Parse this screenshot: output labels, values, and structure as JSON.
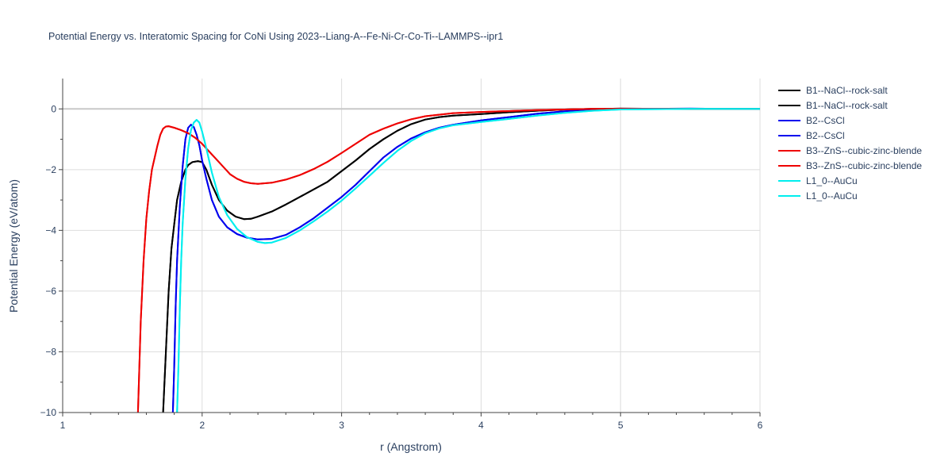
{
  "chart_data": {
    "type": "line",
    "title": "Potential Energy vs. Interatomic Spacing for CoNi Using 2023--Liang-A--Fe-Ni-Cr-Co-Ti--LAMMPS--ipr1",
    "xlabel": "r (Angstrom)",
    "ylabel": "Potential Energy (eV/atom)",
    "xlim": [
      1,
      6
    ],
    "ylim": [
      -10,
      1
    ],
    "x_ticks": [
      1,
      2,
      3,
      4,
      5,
      6
    ],
    "y_ticks": [
      -10,
      -8,
      -6,
      -4,
      -2,
      0
    ],
    "x_tick_labels": [
      "1",
      "2",
      "3",
      "4",
      "5",
      "6"
    ],
    "y_tick_labels": [
      "−10",
      "−8",
      "−6",
      "−4",
      "−2",
      "0"
    ],
    "grid": true,
    "legend_position": "right",
    "series": [
      {
        "name": "B1--NaCl--rock-salt",
        "color": "#000000",
        "x": [
          1.72,
          1.74,
          1.76,
          1.78,
          1.8,
          1.82,
          1.85,
          1.88,
          1.9,
          1.93,
          1.97,
          2.0,
          2.03,
          2.07,
          2.12,
          2.18,
          2.24,
          2.3,
          2.35,
          2.4,
          2.5,
          2.6,
          2.7,
          2.8,
          2.9,
          3.0,
          3.1,
          3.2,
          3.3,
          3.4,
          3.5,
          3.6,
          3.7,
          3.8,
          4.0,
          4.2,
          4.4,
          4.6,
          4.8,
          5.0,
          5.5,
          6.0
        ],
        "y": [
          -10.0,
          -8.0,
          -6.0,
          -4.6,
          -3.8,
          -3.0,
          -2.4,
          -2.0,
          -1.85,
          -1.75,
          -1.72,
          -1.75,
          -2.0,
          -2.5,
          -3.0,
          -3.35,
          -3.55,
          -3.63,
          -3.62,
          -3.55,
          -3.38,
          -3.15,
          -2.9,
          -2.65,
          -2.4,
          -2.05,
          -1.7,
          -1.32,
          -1.0,
          -0.72,
          -0.5,
          -0.35,
          -0.27,
          -0.22,
          -0.17,
          -0.11,
          -0.06,
          -0.02,
          0.0,
          0.01,
          0.0,
          0.0
        ]
      },
      {
        "name": "B1--NaCl--rock-salt",
        "color": "#000000",
        "x": [
          1.72,
          1.74,
          1.76,
          1.78,
          1.8,
          1.82,
          1.85,
          1.88,
          1.9,
          1.93,
          1.97,
          2.0,
          2.03,
          2.07,
          2.12,
          2.18,
          2.24,
          2.3,
          2.35,
          2.4,
          2.5,
          2.6,
          2.7,
          2.8,
          2.9,
          3.0,
          3.1,
          3.2,
          3.3,
          3.4,
          3.5,
          3.6,
          3.7,
          3.8,
          4.0,
          4.2,
          4.4,
          4.6,
          4.8,
          5.0,
          5.5,
          6.0
        ],
        "y": [
          -10.0,
          -8.0,
          -6.0,
          -4.6,
          -3.8,
          -3.0,
          -2.4,
          -2.0,
          -1.85,
          -1.75,
          -1.72,
          -1.75,
          -2.0,
          -2.5,
          -3.0,
          -3.35,
          -3.55,
          -3.63,
          -3.62,
          -3.55,
          -3.38,
          -3.15,
          -2.9,
          -2.65,
          -2.4,
          -2.05,
          -1.7,
          -1.32,
          -1.0,
          -0.72,
          -0.5,
          -0.35,
          -0.27,
          -0.22,
          -0.17,
          -0.11,
          -0.06,
          -0.02,
          0.0,
          0.01,
          0.0,
          0.0
        ]
      },
      {
        "name": "B2--CsCl",
        "color": "#0000ee",
        "x": [
          1.79,
          1.8,
          1.81,
          1.82,
          1.84,
          1.86,
          1.88,
          1.9,
          1.92,
          1.94,
          1.96,
          1.98,
          2.0,
          2.03,
          2.07,
          2.12,
          2.18,
          2.25,
          2.32,
          2.4,
          2.5,
          2.6,
          2.7,
          2.8,
          2.9,
          3.0,
          3.1,
          3.2,
          3.3,
          3.4,
          3.5,
          3.6,
          3.7,
          3.8,
          4.0,
          4.2,
          4.4,
          4.6,
          4.8,
          5.0,
          5.5,
          6.0
        ],
        "y": [
          -10.0,
          -8.5,
          -6.5,
          -5.0,
          -3.2,
          -1.9,
          -1.0,
          -0.62,
          -0.52,
          -0.6,
          -0.85,
          -1.2,
          -1.7,
          -2.3,
          -3.0,
          -3.55,
          -3.9,
          -4.12,
          -4.24,
          -4.3,
          -4.28,
          -4.15,
          -3.9,
          -3.6,
          -3.25,
          -2.9,
          -2.5,
          -2.05,
          -1.6,
          -1.25,
          -0.97,
          -0.77,
          -0.62,
          -0.52,
          -0.38,
          -0.27,
          -0.16,
          -0.08,
          -0.03,
          0.0,
          0.01,
          0.0
        ]
      },
      {
        "name": "B2--CsCl",
        "color": "#0000ee",
        "x": [
          1.79,
          1.8,
          1.81,
          1.82,
          1.84,
          1.86,
          1.88,
          1.9,
          1.92,
          1.94,
          1.96,
          1.98,
          2.0,
          2.03,
          2.07,
          2.12,
          2.18,
          2.25,
          2.32,
          2.4,
          2.5,
          2.6,
          2.7,
          2.8,
          2.9,
          3.0,
          3.1,
          3.2,
          3.3,
          3.4,
          3.5,
          3.6,
          3.7,
          3.8,
          4.0,
          4.2,
          4.4,
          4.6,
          4.8,
          5.0,
          5.5,
          6.0
        ],
        "y": [
          -10.0,
          -8.5,
          -6.5,
          -5.0,
          -3.2,
          -1.9,
          -1.0,
          -0.62,
          -0.52,
          -0.6,
          -0.85,
          -1.2,
          -1.7,
          -2.3,
          -3.0,
          -3.55,
          -3.9,
          -4.12,
          -4.24,
          -4.3,
          -4.28,
          -4.15,
          -3.9,
          -3.6,
          -3.25,
          -2.9,
          -2.5,
          -2.05,
          -1.6,
          -1.25,
          -0.97,
          -0.77,
          -0.62,
          -0.52,
          -0.38,
          -0.27,
          -0.16,
          -0.08,
          -0.03,
          0.0,
          0.01,
          0.0
        ]
      },
      {
        "name": "B3--ZnS--cubic-zinc-blende",
        "color": "#ee0000",
        "x": [
          1.54,
          1.56,
          1.58,
          1.6,
          1.62,
          1.64,
          1.66,
          1.68,
          1.7,
          1.72,
          1.74,
          1.76,
          1.8,
          1.85,
          1.9,
          1.95,
          2.0,
          2.05,
          2.1,
          2.15,
          2.2,
          2.25,
          2.3,
          2.35,
          2.4,
          2.5,
          2.6,
          2.7,
          2.8,
          2.9,
          3.0,
          3.1,
          3.2,
          3.3,
          3.4,
          3.5,
          3.6,
          3.8,
          4.0,
          4.2,
          4.4,
          4.6,
          4.8,
          5.0,
          5.5,
          6.0
        ],
        "y": [
          -10.0,
          -7.0,
          -5.0,
          -3.6,
          -2.7,
          -2.0,
          -1.6,
          -1.2,
          -0.85,
          -0.65,
          -0.58,
          -0.57,
          -0.62,
          -0.7,
          -0.8,
          -0.95,
          -1.15,
          -1.4,
          -1.65,
          -1.9,
          -2.15,
          -2.3,
          -2.4,
          -2.45,
          -2.47,
          -2.43,
          -2.33,
          -2.18,
          -1.98,
          -1.74,
          -1.45,
          -1.15,
          -0.85,
          -0.65,
          -0.48,
          -0.34,
          -0.24,
          -0.14,
          -0.1,
          -0.07,
          -0.04,
          -0.02,
          0.0,
          0.0,
          0.0,
          0.0
        ]
      },
      {
        "name": "B3--ZnS--cubic-zinc-blende",
        "color": "#ee0000",
        "x": [
          1.54,
          1.56,
          1.58,
          1.6,
          1.62,
          1.64,
          1.66,
          1.68,
          1.7,
          1.72,
          1.74,
          1.76,
          1.8,
          1.85,
          1.9,
          1.95,
          2.0,
          2.05,
          2.1,
          2.15,
          2.2,
          2.25,
          2.3,
          2.35,
          2.4,
          2.5,
          2.6,
          2.7,
          2.8,
          2.9,
          3.0,
          3.1,
          3.2,
          3.3,
          3.4,
          3.5,
          3.6,
          3.8,
          4.0,
          4.2,
          4.4,
          4.6,
          4.8,
          5.0,
          5.5,
          6.0
        ],
        "y": [
          -10.0,
          -7.0,
          -5.0,
          -3.6,
          -2.7,
          -2.0,
          -1.6,
          -1.2,
          -0.85,
          -0.65,
          -0.58,
          -0.57,
          -0.62,
          -0.7,
          -0.8,
          -0.95,
          -1.15,
          -1.4,
          -1.65,
          -1.9,
          -2.15,
          -2.3,
          -2.4,
          -2.45,
          -2.47,
          -2.43,
          -2.33,
          -2.18,
          -1.98,
          -1.74,
          -1.45,
          -1.15,
          -0.85,
          -0.65,
          -0.48,
          -0.34,
          -0.24,
          -0.14,
          -0.1,
          -0.07,
          -0.04,
          -0.02,
          0.0,
          0.0,
          0.0,
          0.0
        ]
      },
      {
        "name": "L1_0--AuCu",
        "color": "#00eeee",
        "x": [
          1.82,
          1.83,
          1.84,
          1.85,
          1.86,
          1.88,
          1.9,
          1.92,
          1.94,
          1.96,
          1.98,
          2.0,
          2.03,
          2.07,
          2.12,
          2.18,
          2.25,
          2.32,
          2.4,
          2.45,
          2.5,
          2.6,
          2.7,
          2.8,
          2.9,
          3.0,
          3.1,
          3.2,
          3.3,
          3.4,
          3.5,
          3.6,
          3.7,
          3.8,
          4.0,
          4.2,
          4.4,
          4.6,
          4.8,
          5.0,
          5.5,
          6.0
        ],
        "y": [
          -10.0,
          -8.5,
          -6.5,
          -5.0,
          -3.8,
          -2.3,
          -1.3,
          -0.7,
          -0.45,
          -0.36,
          -0.45,
          -0.75,
          -1.3,
          -2.1,
          -2.9,
          -3.5,
          -3.95,
          -4.22,
          -4.38,
          -4.42,
          -4.4,
          -4.25,
          -4.0,
          -3.7,
          -3.38,
          -3.02,
          -2.62,
          -2.2,
          -1.78,
          -1.38,
          -1.05,
          -0.8,
          -0.64,
          -0.54,
          -0.43,
          -0.33,
          -0.22,
          -0.13,
          -0.06,
          -0.02,
          0.0,
          0.0
        ]
      },
      {
        "name": "L1_0--AuCu",
        "color": "#00eeee",
        "x": [
          1.82,
          1.83,
          1.84,
          1.85,
          1.86,
          1.88,
          1.9,
          1.92,
          1.94,
          1.96,
          1.98,
          2.0,
          2.03,
          2.07,
          2.12,
          2.18,
          2.25,
          2.32,
          2.4,
          2.45,
          2.5,
          2.6,
          2.7,
          2.8,
          2.9,
          3.0,
          3.1,
          3.2,
          3.3,
          3.4,
          3.5,
          3.6,
          3.7,
          3.8,
          4.0,
          4.2,
          4.4,
          4.6,
          4.8,
          5.0,
          5.5,
          6.0
        ],
        "y": [
          -10.0,
          -8.5,
          -6.5,
          -5.0,
          -3.8,
          -2.3,
          -1.3,
          -0.7,
          -0.45,
          -0.36,
          -0.45,
          -0.75,
          -1.3,
          -2.1,
          -2.9,
          -3.5,
          -3.95,
          -4.22,
          -4.38,
          -4.42,
          -4.4,
          -4.25,
          -4.0,
          -3.7,
          -3.38,
          -3.02,
          -2.62,
          -2.2,
          -1.78,
          -1.38,
          -1.05,
          -0.8,
          -0.64,
          -0.54,
          -0.43,
          -0.33,
          -0.22,
          -0.13,
          -0.06,
          -0.02,
          0.0,
          0.0
        ]
      }
    ]
  }
}
